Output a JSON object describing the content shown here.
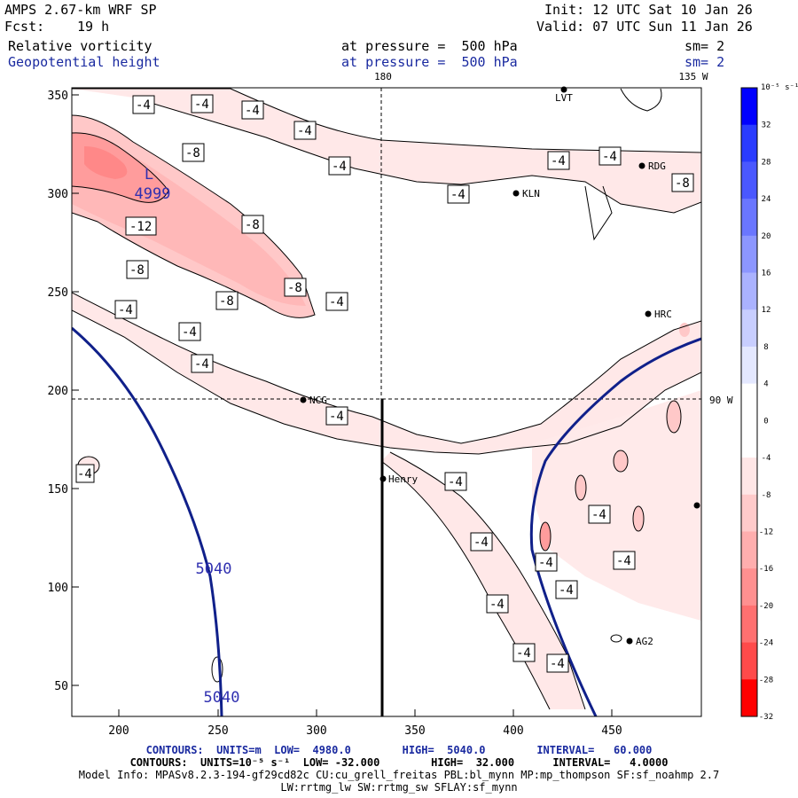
{
  "header": {
    "model": "AMPS 2.67-km WRF SP",
    "init": "Init: 12 UTC Sat 10 Jan 26",
    "fcst_label": "Fcst:",
    "fcst_value": "19 h",
    "valid": "Valid: 07 UTC Sun 11 Jan 26",
    "field1": "Relative vorticity",
    "field1_level": "at pressure =  500 hPa",
    "field1_sm": "sm= 2",
    "field2": "Geopotential height",
    "field2_level": "at pressure =  500 hPa",
    "field2_sm": "sm= 2"
  },
  "map_labels": {
    "lon180": "180",
    "lon135": "135 W",
    "lon90": "90 W",
    "low_letter": "L",
    "low_value": "4999",
    "height_contour_1": "5040",
    "height_contour_2": "5040"
  },
  "stations": [
    {
      "name": "LVT"
    },
    {
      "name": "RDG"
    },
    {
      "name": "KLN"
    },
    {
      "name": "HRC"
    },
    {
      "name": "NCG"
    },
    {
      "name": "Henry"
    },
    {
      "name": "AG2"
    }
  ],
  "vort_labels": {
    "m4": "-4",
    "m8": "-8",
    "m12": "-12"
  },
  "axes": {
    "x_ticks": [
      "200",
      "250",
      "300",
      "350",
      "400",
      "450"
    ],
    "y_ticks": [
      "350",
      "300",
      "250",
      "200",
      "150",
      "100",
      "50"
    ]
  },
  "colorbar": {
    "unit": "10⁻⁵ s⁻¹",
    "ticks": [
      "32",
      "28",
      "24",
      "20",
      "16",
      "12",
      "8",
      "4",
      "0",
      "-4",
      "-8",
      "-12",
      "-16",
      "-20",
      "-24",
      "-28",
      "-32"
    ],
    "colors": [
      "#0000ff",
      "#2a3cff",
      "#4a58ff",
      "#6a76ff",
      "#8c96ff",
      "#aab2ff",
      "#c8ceff",
      "#e4e8ff",
      "#ffffff",
      "#ffffff",
      "#ffe6e6",
      "#ffcaca",
      "#ffaeae",
      "#ff9090",
      "#ff7070",
      "#ff4a4a",
      "#ff0000"
    ]
  },
  "footer": {
    "line1": "CONTOURS:  UNITS=m  LOW=  4980.0        HIGH=  5040.0        INTERVAL=   60.000",
    "line2": "CONTOURS:  UNITS=10⁻⁵ s⁻¹  LOW= -32.000        HIGH=  32.000      INTERVAL=   4.0000",
    "line3": "Model Info: MPASv8.2.3-194-gf29cd82c CU:cu_grell_freitas PBL:bl_mynn MP:mp_thompson SF:sf_noahmp 2.7",
    "line4": "LW:rrtmg_lw SW:rrtmg_sw SFLAY:sf_mynn"
  }
}
